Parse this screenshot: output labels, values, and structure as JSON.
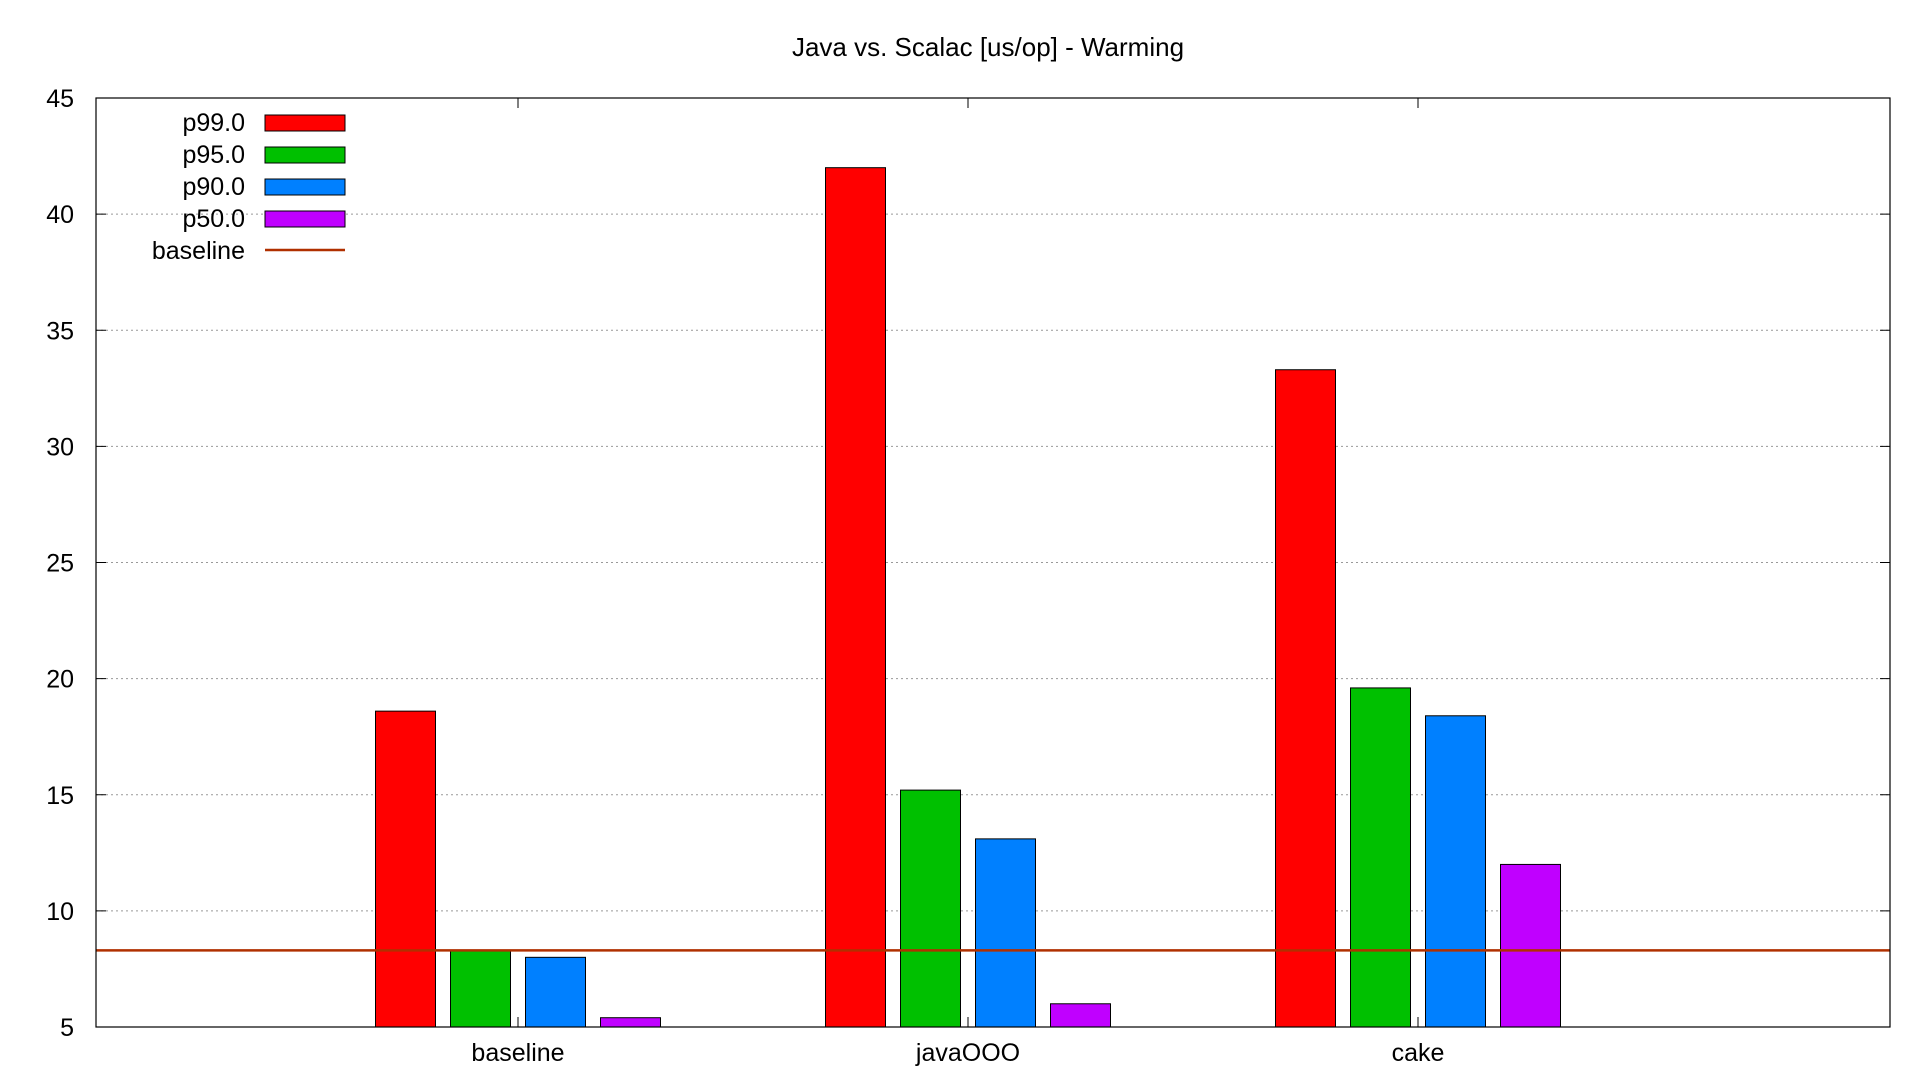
{
  "chart_data": {
    "type": "bar",
    "title": "Java vs. Scalac [us/op] - Warming",
    "xlabel": "",
    "ylabel": "",
    "categories": [
      "baseline",
      "javaOOO",
      "cake"
    ],
    "ylim": [
      5,
      45
    ],
    "yticks": [
      5,
      10,
      15,
      20,
      25,
      30,
      35,
      40,
      45
    ],
    "grid": true,
    "legend_position": "top-left",
    "series": [
      {
        "name": "p99.0",
        "color": "#ff0000",
        "values": [
          18.6,
          42.0,
          33.3
        ]
      },
      {
        "name": "p95.0",
        "color": "#00c000",
        "values": [
          8.3,
          15.2,
          19.6
        ]
      },
      {
        "name": "p90.0",
        "color": "#0080ff",
        "values": [
          8.0,
          13.1,
          18.4
        ]
      },
      {
        "name": "p50.0",
        "color": "#c000ff",
        "values": [
          5.4,
          6.0,
          12.0
        ]
      }
    ],
    "reference_line": {
      "name": "baseline",
      "value": 8.3,
      "color": "#b03000"
    }
  }
}
